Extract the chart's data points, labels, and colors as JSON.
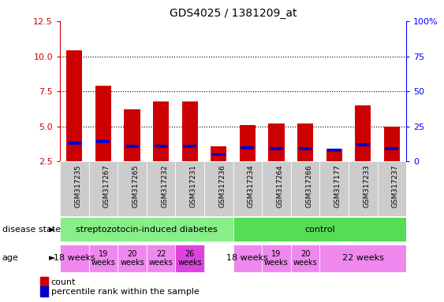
{
  "title": "GDS4025 / 1381209_at",
  "samples": [
    "GSM317235",
    "GSM317267",
    "GSM317265",
    "GSM317232",
    "GSM317231",
    "GSM317236",
    "GSM317234",
    "GSM317264",
    "GSM317266",
    "GSM317177",
    "GSM317233",
    "GSM317237"
  ],
  "count_values": [
    10.4,
    7.9,
    6.2,
    6.8,
    6.8,
    3.6,
    5.1,
    5.2,
    5.2,
    3.4,
    6.5,
    5.0
  ],
  "percentile_values": [
    3.8,
    3.9,
    3.6,
    3.6,
    3.6,
    3.0,
    3.5,
    3.4,
    3.4,
    3.3,
    3.7,
    3.4
  ],
  "ylim_left": [
    2.5,
    12.5
  ],
  "ylim_right": [
    0,
    100
  ],
  "yticks_left": [
    2.5,
    5.0,
    7.5,
    10.0,
    12.5
  ],
  "yticks_right": [
    0,
    25,
    50,
    75,
    100
  ],
  "bar_color": "#cc0000",
  "percentile_color": "#0000cc",
  "bg_color": "#ffffff",
  "sample_bg": "#cccccc",
  "disease_state_groups": [
    {
      "label": "streptozotocin-induced diabetes",
      "start": 0,
      "end": 6,
      "color": "#88ee88"
    },
    {
      "label": "control",
      "start": 6,
      "end": 12,
      "color": "#55dd55"
    }
  ],
  "age_groups": [
    {
      "label": "18 weeks",
      "start": 0,
      "end": 1,
      "color": "#ee88ee",
      "fontsize": 8,
      "two_line": false
    },
    {
      "label": "19\nweeks",
      "start": 1,
      "end": 2,
      "color": "#ee88ee",
      "fontsize": 7,
      "two_line": true
    },
    {
      "label": "20\nweeks",
      "start": 2,
      "end": 3,
      "color": "#ee88ee",
      "fontsize": 7,
      "two_line": true
    },
    {
      "label": "22\nweeks",
      "start": 3,
      "end": 4,
      "color": "#ee88ee",
      "fontsize": 7,
      "two_line": true
    },
    {
      "label": "26\nweeks",
      "start": 4,
      "end": 5,
      "color": "#dd44dd",
      "fontsize": 7,
      "two_line": true
    },
    {
      "label": "18 weeks",
      "start": 6,
      "end": 7,
      "color": "#ee88ee",
      "fontsize": 8,
      "two_line": false
    },
    {
      "label": "19\nweeks",
      "start": 7,
      "end": 8,
      "color": "#ee88ee",
      "fontsize": 7,
      "two_line": true
    },
    {
      "label": "20\nweeks",
      "start": 8,
      "end": 9,
      "color": "#ee88ee",
      "fontsize": 7,
      "two_line": true
    },
    {
      "label": "22 weeks",
      "start": 9,
      "end": 12,
      "color": "#ee88ee",
      "fontsize": 8,
      "two_line": false
    }
  ]
}
